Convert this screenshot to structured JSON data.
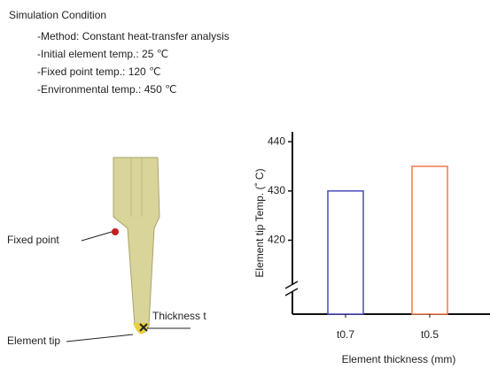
{
  "conditions": {
    "title": "Simulation Condition",
    "items": [
      "-Method: Constant heat-transfer analysis",
      "-Initial element temp.: 25 ℃",
      "-Fixed point temp.: 120 ℃",
      "-Environmental temp.: 450 ℃"
    ]
  },
  "diagram": {
    "fixed_point": "Fixed point",
    "element_tip": "Element tip",
    "thickness": "Thickness t"
  },
  "chart_data": {
    "type": "bar",
    "y_label": "Element tip Temp. (˚ C)",
    "x_label": "Element thickness (mm)",
    "categories": [
      "t0.7",
      "t0.5"
    ],
    "values": [
      430,
      435
    ],
    "colors": [
      "#4a4ab8",
      "#f07a4a"
    ],
    "ylim": [
      405,
      442
    ],
    "yticks": [
      420,
      430,
      440
    ],
    "axis_break": true
  }
}
